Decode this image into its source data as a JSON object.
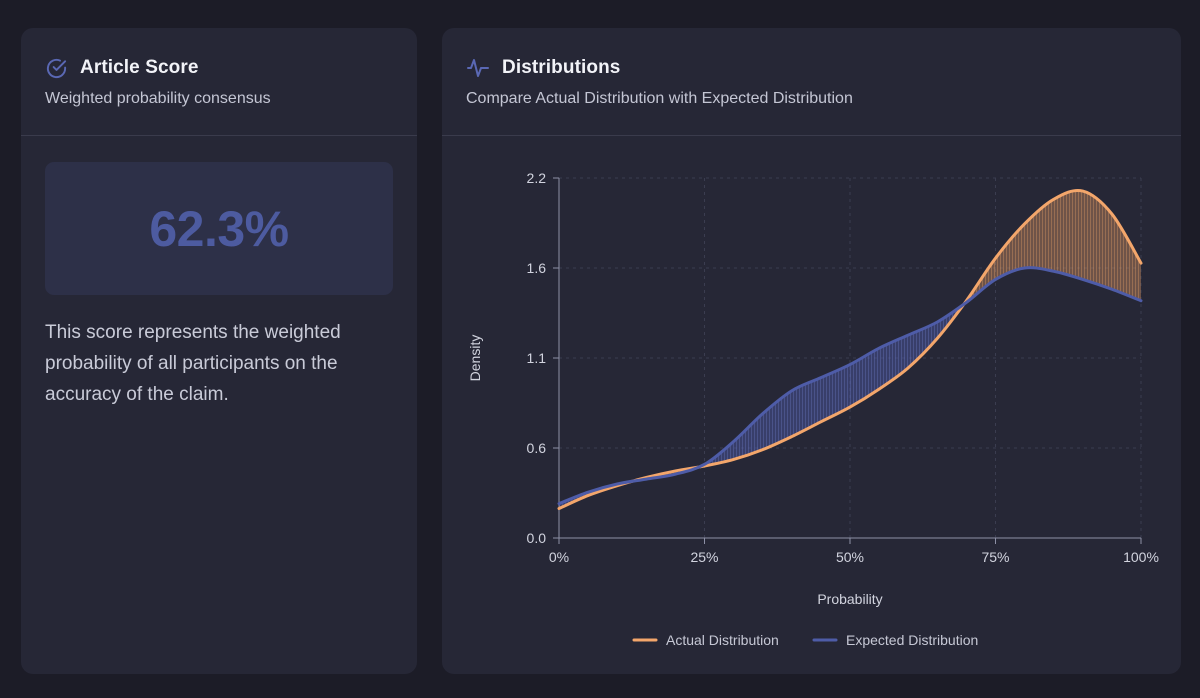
{
  "score_card": {
    "title": "Article Score",
    "subtitle": "Weighted probability consensus",
    "score": "62.3%",
    "description": "This score represents the weighted probability of all participants on the accuracy of the claim.",
    "icon": "check-circle-icon"
  },
  "distribution_card": {
    "title": "Distributions",
    "subtitle": "Compare Actual Distribution with Expected Distribution",
    "icon": "activity-pulse-icon"
  },
  "colors": {
    "actual": "#f3a66b",
    "expected": "#4e5ca8",
    "accent": "#4d5ba0"
  },
  "chart_data": {
    "type": "line",
    "xlabel": "Probability",
    "ylabel": "Density",
    "x_ticks": [
      "0%",
      "25%",
      "50%",
      "75%",
      "100%"
    ],
    "x_tick_values": [
      0,
      25,
      50,
      75,
      100
    ],
    "y_ticks": [
      "0.0",
      "0.6",
      "1.1",
      "1.6",
      "2.2"
    ],
    "y_tick_values": [
      0,
      0.55,
      1.1,
      1.65,
      2.2
    ],
    "xlim": [
      0,
      100
    ],
    "ylim": [
      0,
      2.2
    ],
    "grid": true,
    "legend_position": "bottom-center",
    "fill_between": true,
    "series": [
      {
        "name": "Actual Distribution",
        "color": "#f3a66b",
        "x": [
          0,
          5,
          10,
          15,
          20,
          25,
          30,
          35,
          40,
          45,
          50,
          55,
          60,
          65,
          70,
          75,
          80,
          85,
          90,
          95,
          100
        ],
        "y": [
          0.18,
          0.26,
          0.32,
          0.37,
          0.41,
          0.44,
          0.48,
          0.54,
          0.62,
          0.71,
          0.8,
          0.91,
          1.04,
          1.22,
          1.45,
          1.71,
          1.92,
          2.07,
          2.12,
          1.98,
          1.68
        ]
      },
      {
        "name": "Expected Distribution",
        "color": "#4e5ca8",
        "x": [
          0,
          5,
          10,
          15,
          20,
          25,
          30,
          35,
          40,
          45,
          50,
          55,
          60,
          65,
          70,
          75,
          80,
          85,
          90,
          95,
          100
        ],
        "y": [
          0.21,
          0.28,
          0.33,
          0.36,
          0.39,
          0.45,
          0.59,
          0.76,
          0.9,
          0.98,
          1.06,
          1.16,
          1.24,
          1.32,
          1.44,
          1.58,
          1.65,
          1.63,
          1.58,
          1.52,
          1.45
        ]
      }
    ]
  }
}
